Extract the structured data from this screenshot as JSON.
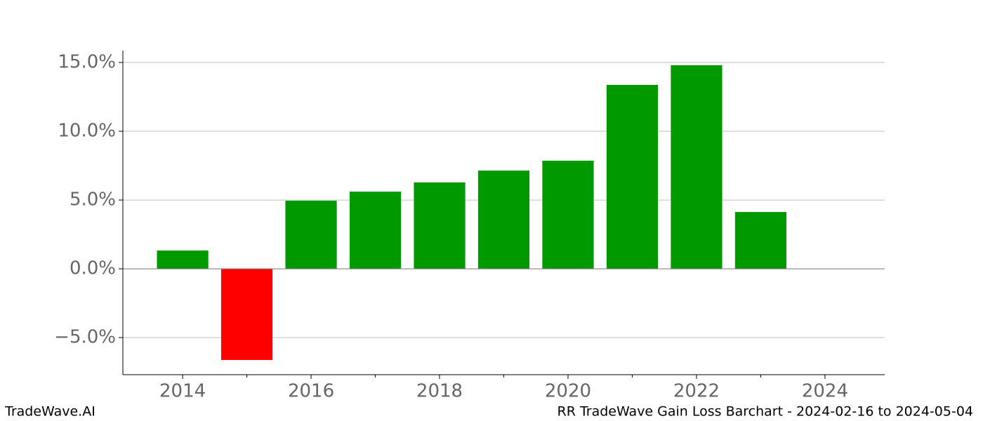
{
  "chart_data": {
    "type": "bar",
    "title": "RR TradeWave Gain Loss Barchart - 2024-02-16 to 2024-05-04",
    "source": "TradeWave.AI",
    "x": [
      2014,
      2015,
      2016,
      2017,
      2018,
      2019,
      2020,
      2021,
      2022,
      2023
    ],
    "values": [
      1.33,
      -6.63,
      4.95,
      5.61,
      6.28,
      7.14,
      7.86,
      13.37,
      14.8,
      4.13
    ],
    "color": "#009900",
    "negative_color": "#ff0000",
    "bar_width": 0.8,
    "xlim": [
      2013.07,
      2024.93
    ],
    "xticks": [
      2014,
      2016,
      2018,
      2020,
      2022,
      2024
    ],
    "xminorticks": [
      2015,
      2017,
      2019,
      2021,
      2023
    ],
    "ylim": [
      -7.7,
      15.87
    ],
    "yticks": [
      {
        "value": -5,
        "label": "−5.0%"
      },
      {
        "value": 0,
        "label": "0.0%"
      },
      {
        "value": 5,
        "label": "5.0%"
      },
      {
        "value": 10,
        "label": "10.0%"
      },
      {
        "value": 15,
        "label": "15.0%"
      }
    ],
    "grid": true,
    "zero_line": true
  }
}
